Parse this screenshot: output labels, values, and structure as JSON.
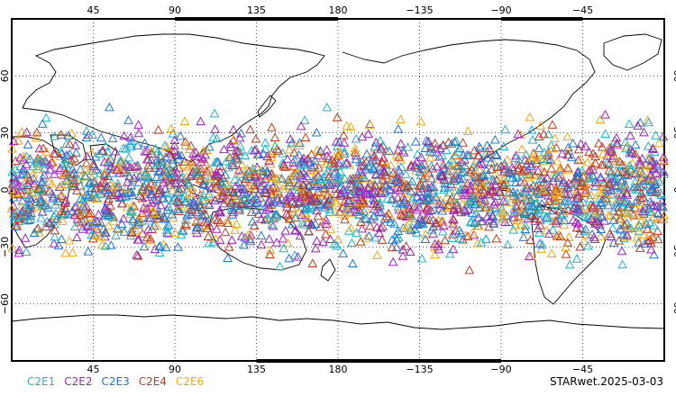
{
  "map": {
    "projection": "equirectangular",
    "lon_center": 180,
    "lon_range": [
      0,
      360
    ],
    "lat_range": [
      -90,
      90
    ],
    "lon_ticks": [
      {
        "value": 45,
        "label": "45"
      },
      {
        "value": 90,
        "label": "90"
      },
      {
        "value": 135,
        "label": "135"
      },
      {
        "value": 180,
        "label": "180"
      },
      {
        "value": 225,
        "label": "−135"
      },
      {
        "value": 270,
        "label": "−90"
      },
      {
        "value": 315,
        "label": "−45"
      }
    ],
    "lat_ticks": [
      {
        "value": 60,
        "label": "60"
      },
      {
        "value": 30,
        "label": "30"
      },
      {
        "value": 0,
        "label": "0"
      },
      {
        "value": -30,
        "label": "−30"
      },
      {
        "value": -60,
        "label": "−60"
      }
    ],
    "gridlines": "dotted",
    "marker": "triangle-outline",
    "observation_lat_band": [
      -45,
      45
    ]
  },
  "legend": [
    {
      "label": "C2E1",
      "color": "#1ab5c9"
    },
    {
      "label": "C2E2",
      "color": "#a020c0"
    },
    {
      "label": "C2E3",
      "color": "#1e78d2"
    },
    {
      "label": "C2E4",
      "color": "#c03a1e"
    },
    {
      "label": "C2E6",
      "color": "#f0a810"
    }
  ],
  "credit": "STARwet.2025-03-03"
}
